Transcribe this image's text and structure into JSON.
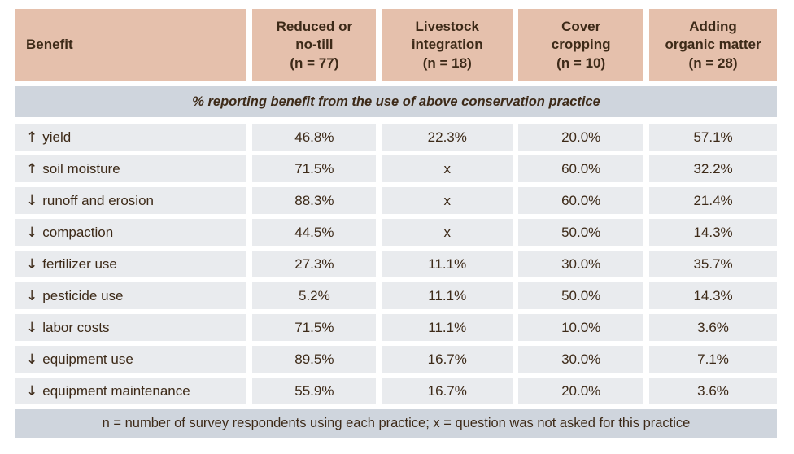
{
  "colors": {
    "header_bg": "#e5c0ac",
    "band_bg": "#cfd5dd",
    "row_bg": "#e9ebee",
    "text": "#3d2a18",
    "page_bg": "#ffffff"
  },
  "table": {
    "columns": [
      {
        "label": "Benefit"
      },
      {
        "label": "Reduced or\nno-till\n(n = 77)"
      },
      {
        "label": "Livestock\nintegration\n(n = 18)"
      },
      {
        "label": "Cover\ncropping\n(n = 10)"
      },
      {
        "label": "Adding\norganic matter\n(n = 28)"
      }
    ],
    "subheader": "% reporting benefit from the use of above conservation practice",
    "rows": [
      {
        "arrow": "↑",
        "direction": "increase",
        "benefit": "yield",
        "values": [
          "46.8%",
          "22.3%",
          "20.0%",
          "57.1%"
        ]
      },
      {
        "arrow": "↑",
        "direction": "increase",
        "benefit": "soil moisture",
        "values": [
          "71.5%",
          "x",
          "60.0%",
          "32.2%"
        ]
      },
      {
        "arrow": "↓",
        "direction": "decrease",
        "benefit": "runoff and erosion",
        "values": [
          "88.3%",
          "x",
          "60.0%",
          "21.4%"
        ]
      },
      {
        "arrow": "↓",
        "direction": "decrease",
        "benefit": "compaction",
        "values": [
          "44.5%",
          "x",
          "50.0%",
          "14.3%"
        ]
      },
      {
        "arrow": "↓",
        "direction": "decrease",
        "benefit": "fertilizer use",
        "values": [
          "27.3%",
          "11.1%",
          "30.0%",
          "35.7%"
        ]
      },
      {
        "arrow": "↓",
        "direction": "decrease",
        "benefit": "pesticide use",
        "values": [
          "5.2%",
          "11.1%",
          "50.0%",
          "14.3%"
        ]
      },
      {
        "arrow": "↓",
        "direction": "decrease",
        "benefit": "labor costs",
        "values": [
          "71.5%",
          "11.1%",
          "10.0%",
          "3.6%"
        ]
      },
      {
        "arrow": "↓",
        "direction": "decrease",
        "benefit": "equipment use",
        "values": [
          "89.5%",
          "16.7%",
          "30.0%",
          "7.1%"
        ]
      },
      {
        "arrow": "↓",
        "direction": "decrease",
        "benefit": "equipment maintenance",
        "values": [
          "55.9%",
          "16.7%",
          "20.0%",
          "3.6%"
        ]
      }
    ],
    "footnote": "n = number of survey respondents using each practice;  x = question was not asked for this practice"
  },
  "chart_data": {
    "type": "table",
    "title": "% reporting benefit from the use of above conservation practice",
    "row_header": "Benefit",
    "columns": [
      "Reduced or no-till (n = 77)",
      "Livestock integration (n = 18)",
      "Cover cropping (n = 10)",
      "Adding organic matter (n = 28)"
    ],
    "sample_sizes": {
      "Reduced or no-till": 77,
      "Livestock integration": 18,
      "Cover cropping": 10,
      "Adding organic matter": 28
    },
    "rows": [
      {
        "benefit": "yield",
        "direction": "increase",
        "values": [
          46.8,
          22.3,
          20.0,
          57.1
        ]
      },
      {
        "benefit": "soil moisture",
        "direction": "increase",
        "values": [
          71.5,
          null,
          60.0,
          32.2
        ]
      },
      {
        "benefit": "runoff and erosion",
        "direction": "decrease",
        "values": [
          88.3,
          null,
          60.0,
          21.4
        ]
      },
      {
        "benefit": "compaction",
        "direction": "decrease",
        "values": [
          44.5,
          null,
          50.0,
          14.3
        ]
      },
      {
        "benefit": "fertilizer use",
        "direction": "decrease",
        "values": [
          27.3,
          11.1,
          30.0,
          35.7
        ]
      },
      {
        "benefit": "pesticide use",
        "direction": "decrease",
        "values": [
          5.2,
          11.1,
          50.0,
          14.3
        ]
      },
      {
        "benefit": "labor costs",
        "direction": "decrease",
        "values": [
          71.5,
          11.1,
          10.0,
          3.6
        ]
      },
      {
        "benefit": "equipment use",
        "direction": "decrease",
        "values": [
          89.5,
          16.7,
          30.0,
          7.1
        ]
      },
      {
        "benefit": "equipment maintenance",
        "direction": "decrease",
        "values": [
          55.9,
          16.7,
          20.0,
          3.6
        ]
      }
    ],
    "values_unit": "%",
    "missing_marker": "x",
    "footnote": "n = number of survey respondents using each practice;  x = question was not asked for this practice"
  }
}
